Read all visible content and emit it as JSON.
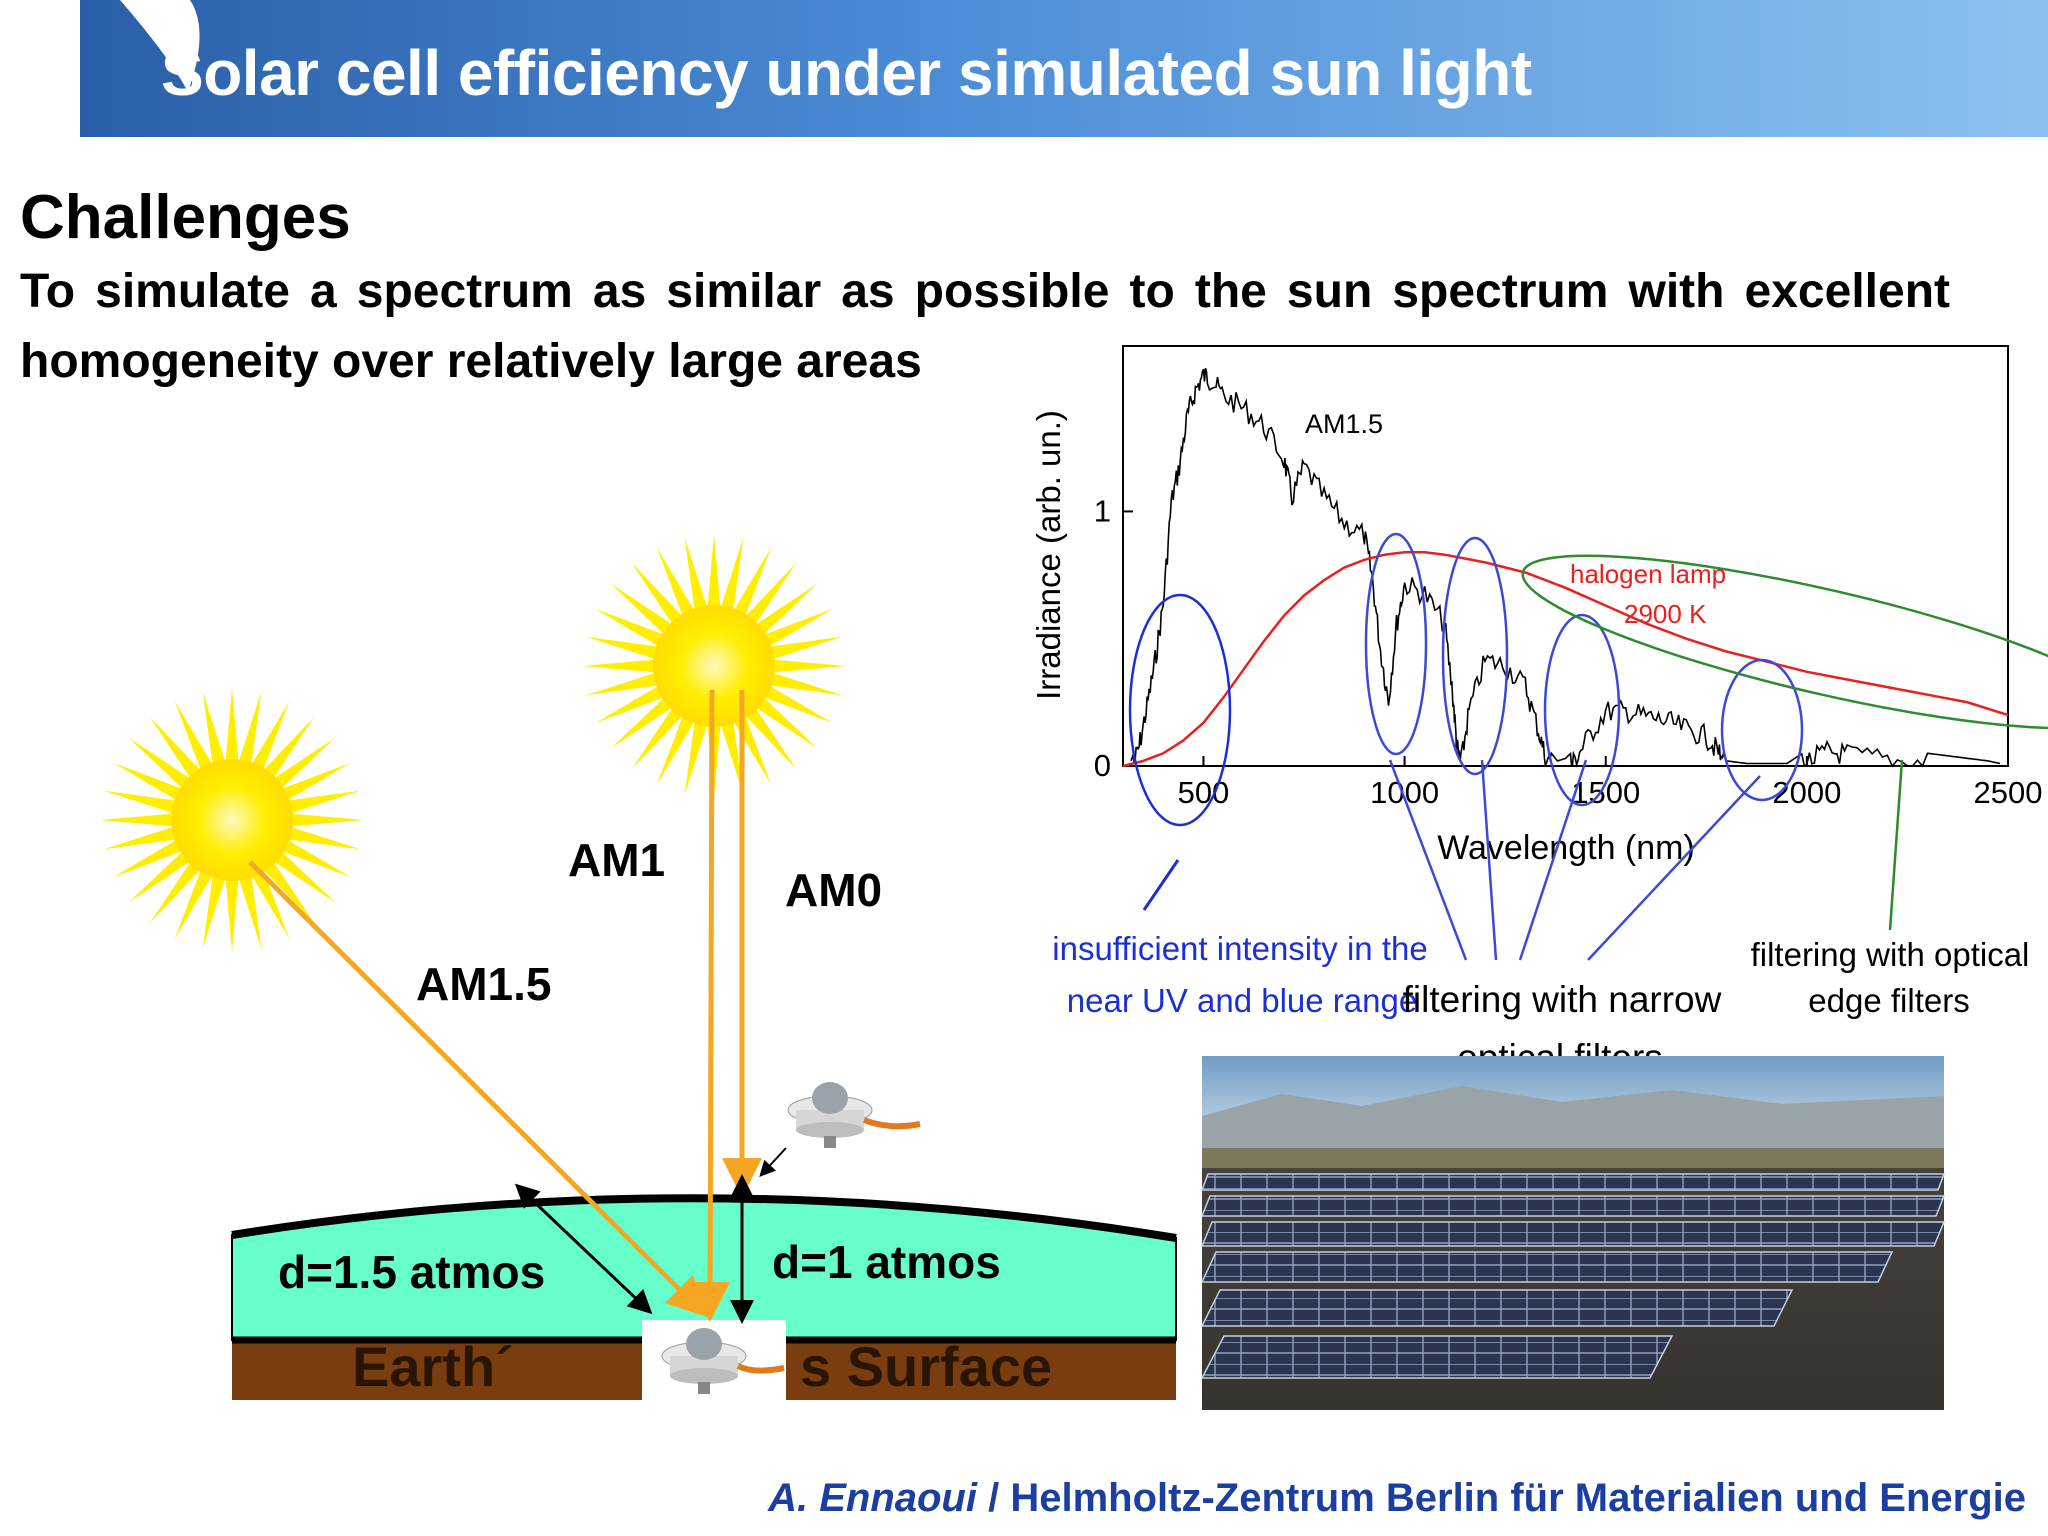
{
  "header": {
    "title": "Solar cell efficiency under simulated sun light"
  },
  "intro": {
    "heading": "Challenges",
    "line1": "To simulate a spectrum as similar as possible to the sun spectrum with excellent",
    "line2": "homogeneity over relatively large areas"
  },
  "air_mass_diagram": {
    "ray_am15": "AM1.5",
    "ray_am1": "AM1",
    "ray_am0": "AM0",
    "path_d15": "d=1.5 atmos",
    "path_d1": "d=1 atmos",
    "surface_left": "Earth´",
    "surface_right": "s Surface",
    "colors": {
      "sun": "#ffee00",
      "ray": "#f5a623",
      "atmosphere": "#66ffcc",
      "ground": "#7a3d10"
    }
  },
  "chart_data": {
    "type": "line",
    "xlabel": "Wavelength (nm)",
    "ylabel": "Irradiance (arb. un.)",
    "xlim": [
      300,
      2500
    ],
    "ylim": [
      0,
      1.65
    ],
    "xticks": [
      500,
      1000,
      1500,
      2000,
      2500
    ],
    "yticks": [
      0,
      1
    ],
    "grid": false,
    "series": [
      {
        "name": "AM1.5",
        "color": "#000000",
        "x": [
          320,
          340,
          360,
          380,
          400,
          420,
          440,
          460,
          480,
          500,
          520,
          550,
          600,
          650,
          700,
          720,
          750,
          800,
          850,
          900,
          920,
          940,
          960,
          980,
          1000,
          1050,
          1100,
          1120,
          1130,
          1140,
          1160,
          1200,
          1250,
          1300,
          1330,
          1350,
          1380,
          1400,
          1420,
          1450,
          1500,
          1550,
          1600,
          1650,
          1700,
          1750,
          1780,
          1800,
          1850,
          1900,
          1950,
          2000,
          2050,
          2100,
          2200,
          2300,
          2400,
          2450,
          2480
        ],
        "y": [
          0.02,
          0.12,
          0.28,
          0.46,
          0.68,
          1.08,
          1.22,
          1.42,
          1.52,
          1.58,
          1.56,
          1.5,
          1.45,
          1.38,
          1.25,
          1.1,
          1.22,
          1.1,
          1.0,
          0.95,
          0.78,
          0.5,
          0.3,
          0.6,
          0.76,
          0.72,
          0.6,
          0.32,
          0.12,
          0.05,
          0.26,
          0.46,
          0.44,
          0.36,
          0.2,
          0.08,
          0.02,
          0.03,
          0.06,
          0.14,
          0.26,
          0.26,
          0.24,
          0.22,
          0.19,
          0.16,
          0.1,
          0.02,
          0.01,
          0.01,
          0.01,
          0.06,
          0.1,
          0.09,
          0.07,
          0.05,
          0.03,
          0.02,
          0.01
        ]
      },
      {
        "name": "halogen lamp 2900 K",
        "color": "#e8211c",
        "x": [
          300,
          350,
          400,
          450,
          500,
          550,
          600,
          650,
          700,
          750,
          800,
          850,
          900,
          950,
          1000,
          1050,
          1100,
          1200,
          1300,
          1400,
          1500,
          1600,
          1700,
          1800,
          1900,
          2000,
          2100,
          2200,
          2300,
          2400,
          2500
        ],
        "y": [
          0.0,
          0.02,
          0.05,
          0.1,
          0.17,
          0.27,
          0.38,
          0.49,
          0.59,
          0.67,
          0.73,
          0.78,
          0.81,
          0.83,
          0.84,
          0.84,
          0.83,
          0.8,
          0.76,
          0.7,
          0.63,
          0.56,
          0.5,
          0.45,
          0.41,
          0.37,
          0.34,
          0.31,
          0.28,
          0.25,
          0.2
        ]
      }
    ],
    "annotations": {
      "am15_label": "AM1.5",
      "halogen_line1": "halogen lamp",
      "halogen_line2": "2900 K",
      "uv_line1": "insufficient intensity in the",
      "uv_line2": "near UV and blue range",
      "narrow_line1": "filtering with narrow",
      "narrow_line2": "optical filters",
      "edge_line1": "filtering with optical",
      "edge_line2": "edge filters"
    }
  }
}
